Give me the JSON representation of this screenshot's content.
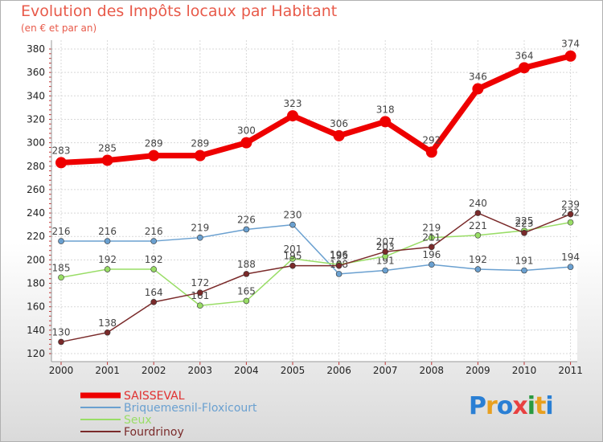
{
  "header": {
    "title": "Evolution des Impôts locaux par Habitant",
    "subtitle": "(en € et par an)"
  },
  "logo": {
    "letters": [
      "P",
      "r",
      "o",
      "x",
      "i",
      "t",
      "i"
    ],
    "colors": [
      "#2a7fd4",
      "#e8a020",
      "#2a7fd4",
      "#e84040",
      "#2a9a40",
      "#e8a020",
      "#2a7fd4"
    ]
  },
  "chart_data": {
    "type": "line",
    "title": "Evolution des Impôts locaux par Habitant",
    "subtitle": "(en € et par an)",
    "xlabel": "",
    "ylabel": "",
    "x": [
      "2000",
      "2001",
      "2002",
      "2003",
      "2004",
      "2005",
      "2006",
      "2007",
      "2008",
      "2009",
      "2010",
      "2011"
    ],
    "ylim": [
      120,
      380
    ],
    "yticks": [
      120,
      140,
      160,
      180,
      200,
      220,
      240,
      260,
      280,
      300,
      320,
      340,
      360,
      380
    ],
    "grid": true,
    "legend": "bottom-left",
    "series": [
      {
        "name": "SAISSEVAL",
        "color": "#ee0000",
        "values": [
          283,
          285,
          289,
          289,
          300,
          323,
          306,
          318,
          292,
          346,
          364,
          374
        ]
      },
      {
        "name": "Briquemesnil-Floxicourt",
        "color": "#6aa0d0",
        "values": [
          216,
          216,
          216,
          219,
          226,
          230,
          188,
          191,
          196,
          192,
          191,
          194
        ]
      },
      {
        "name": "Seux",
        "color": "#99dd66",
        "values": [
          185,
          192,
          192,
          161,
          165,
          201,
          196,
          203,
          219,
          221,
          225,
          232
        ]
      },
      {
        "name": "Fourdrinoy",
        "color": "#7a2a2a",
        "values": [
          130,
          138,
          164,
          172,
          188,
          195,
          195,
          207,
          211,
          240,
          223,
          239
        ]
      }
    ]
  }
}
